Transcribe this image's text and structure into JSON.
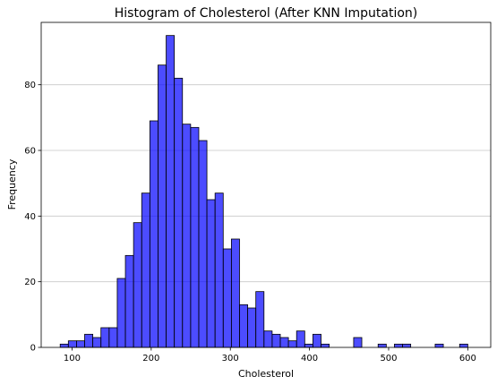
{
  "chart_data": {
    "type": "bar",
    "title": "Histogram of Cholesterol (After KNN Imputation)",
    "xlabel": "Cholesterol",
    "ylabel": "Frequency",
    "xlim": [
      61,
      629
    ],
    "ylim": [
      0,
      99
    ],
    "x_ticks": [
      100,
      200,
      300,
      400,
      500,
      600
    ],
    "y_ticks": [
      0,
      20,
      40,
      60,
      80
    ],
    "grid": "horizontal",
    "bar_color": "#0000ff",
    "bar_opacity": 0.7,
    "edge_color": "#000000",
    "bin_width": 10.3,
    "bins": [
      {
        "x": 85,
        "value": 1
      },
      {
        "x": 95.3,
        "value": 2
      },
      {
        "x": 105.6,
        "value": 2
      },
      {
        "x": 115.9,
        "value": 4
      },
      {
        "x": 126.2,
        "value": 3
      },
      {
        "x": 136.5,
        "value": 6
      },
      {
        "x": 146.8,
        "value": 6
      },
      {
        "x": 157.1,
        "value": 21
      },
      {
        "x": 167.4,
        "value": 28
      },
      {
        "x": 177.7,
        "value": 38
      },
      {
        "x": 188,
        "value": 47
      },
      {
        "x": 198.3,
        "value": 69
      },
      {
        "x": 208.6,
        "value": 86
      },
      {
        "x": 218.9,
        "value": 95
      },
      {
        "x": 229.2,
        "value": 82
      },
      {
        "x": 239.5,
        "value": 68
      },
      {
        "x": 249.8,
        "value": 67
      },
      {
        "x": 260.1,
        "value": 63
      },
      {
        "x": 270.4,
        "value": 45
      },
      {
        "x": 280.7,
        "value": 47
      },
      {
        "x": 291,
        "value": 30
      },
      {
        "x": 301.3,
        "value": 33
      },
      {
        "x": 311.6,
        "value": 13
      },
      {
        "x": 321.9,
        "value": 12
      },
      {
        "x": 332.2,
        "value": 17
      },
      {
        "x": 342.5,
        "value": 5
      },
      {
        "x": 352.8,
        "value": 4
      },
      {
        "x": 363.1,
        "value": 3
      },
      {
        "x": 373.4,
        "value": 2
      },
      {
        "x": 383.7,
        "value": 5
      },
      {
        "x": 394,
        "value": 1
      },
      {
        "x": 404.3,
        "value": 4
      },
      {
        "x": 414.6,
        "value": 1
      },
      {
        "x": 455.8,
        "value": 3
      },
      {
        "x": 486.7,
        "value": 1
      },
      {
        "x": 507.3,
        "value": 1
      },
      {
        "x": 517.6,
        "value": 1
      },
      {
        "x": 558.8,
        "value": 1
      },
      {
        "x": 589.7,
        "value": 1
      }
    ]
  }
}
